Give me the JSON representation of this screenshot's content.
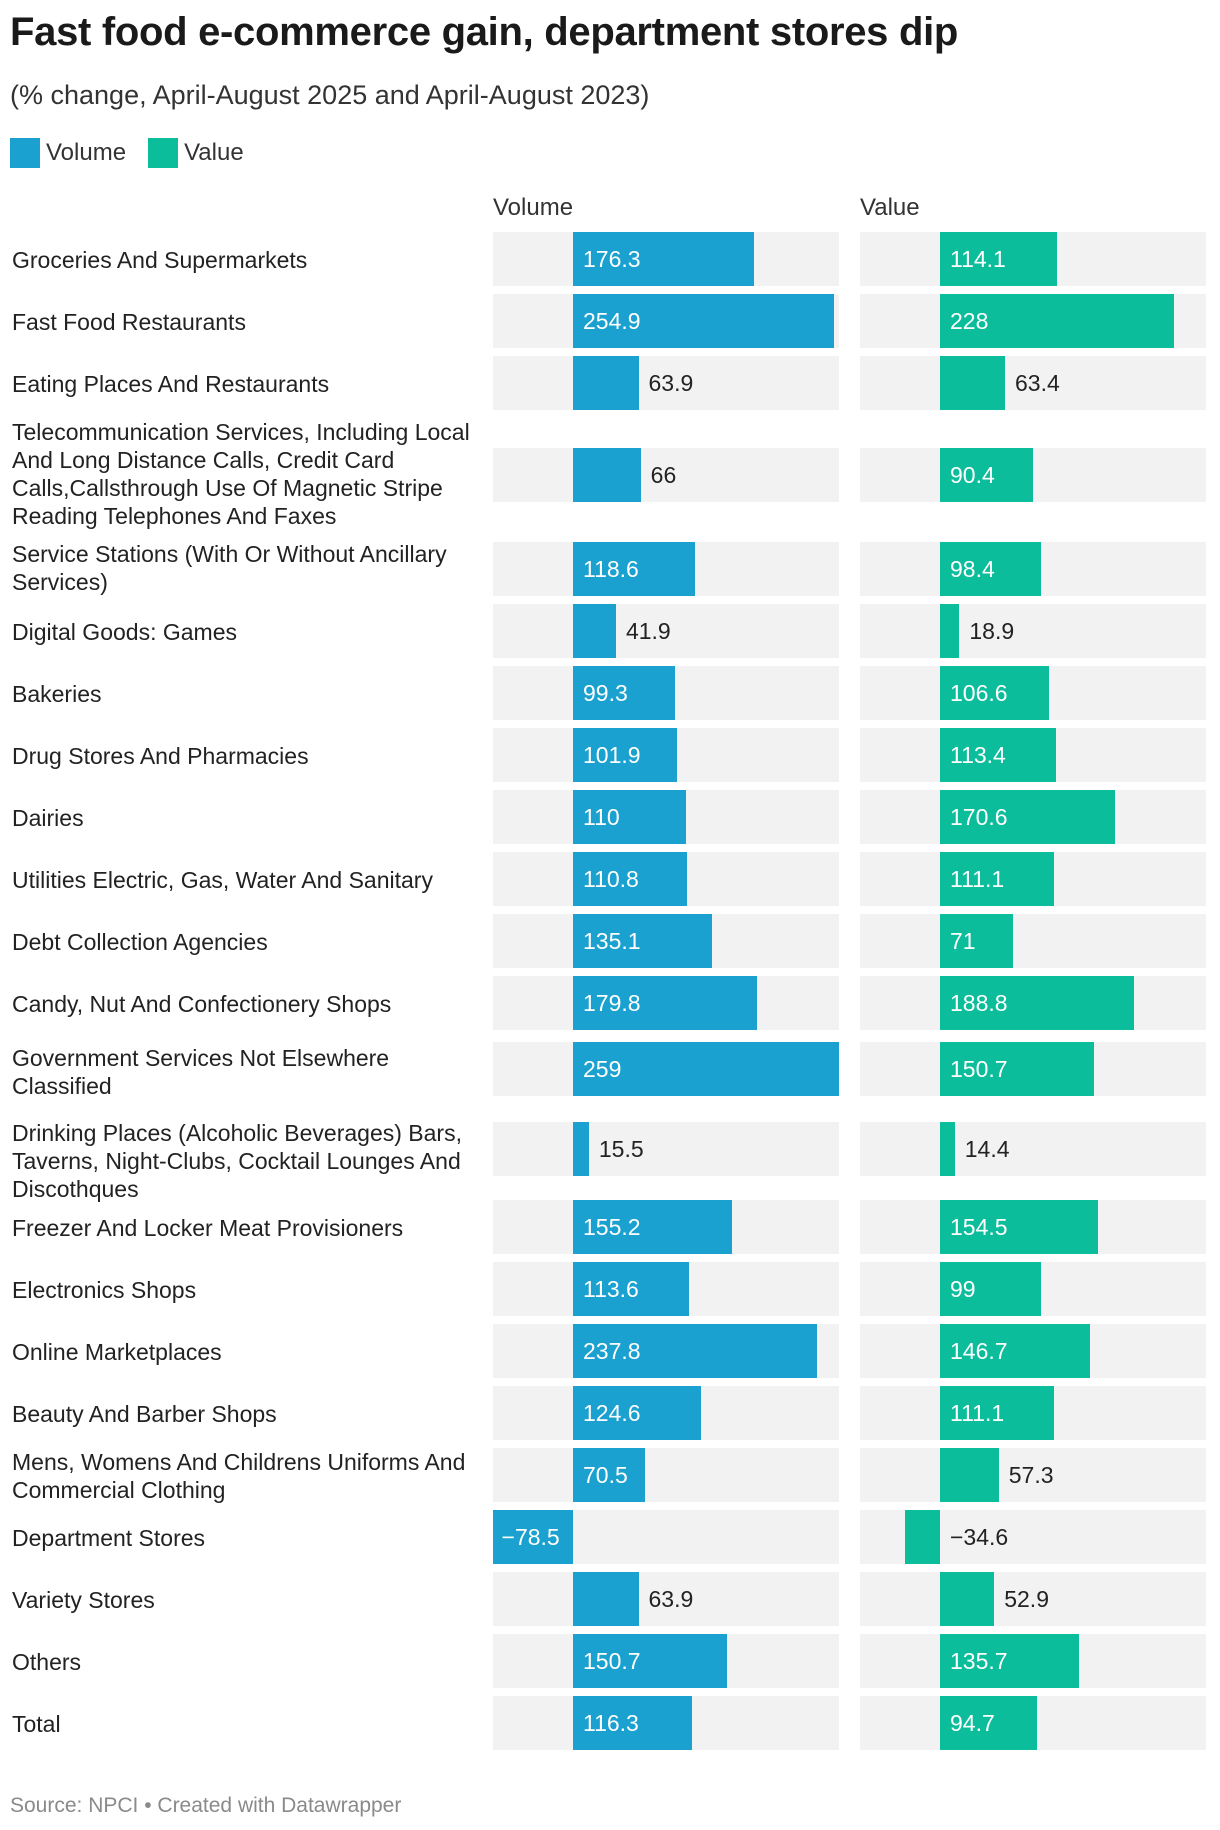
{
  "header": {
    "title": "Fast food e-commerce gain, department stores dip",
    "subtitle": "(% change, April-August 2025 and April-August 2023)"
  },
  "legend": [
    {
      "label": "Volume",
      "color": "#1aa1d0"
    },
    {
      "label": "Value",
      "color": "#0bbd9a"
    }
  ],
  "columns": {
    "volume": "Volume",
    "value": "Value"
  },
  "footer": {
    "source": "Source: NPCI • Created with Datawrapper"
  },
  "chart_data": {
    "type": "bar",
    "orientation": "horizontal",
    "title": "Fast food e-commerce gain, department stores dip",
    "subtitle": "(% change, April-August 2025 and April-August 2023)",
    "categories": [
      "Groceries And Supermarkets",
      "Fast Food Restaurants",
      "Eating Places And Restaurants",
      "Telecommunication Services, Including Local And Long Distance Calls, Credit Card Calls,Callsthrough Use Of Magnetic Stripe Reading Telephones And Faxes",
      "Service Stations (With Or Without Ancillary Services)",
      "Digital Goods: Games",
      "Bakeries",
      "Drug Stores And Pharmacies",
      "Dairies",
      "Utilities Electric, Gas, Water And Sanitary",
      "Debt Collection Agencies",
      "Candy, Nut And Confectionery Shops",
      "Government Services Not Elsewhere Classified",
      "Drinking Places (Alcoholic Beverages) Bars, Taverns, Night-Clubs, Cocktail Lounges And Discothques",
      "Freezer And Locker Meat Provisioners",
      "Electronics Shops",
      "Online Marketplaces",
      "Beauty And Barber Shops",
      "Mens, Womens And Childrens Uniforms And Commercial Clothing",
      "Department Stores",
      "Variety Stores",
      "Others",
      "Total"
    ],
    "series": [
      {
        "name": "Volume",
        "color": "#1aa1d0",
        "values": [
          176.3,
          254.9,
          63.9,
          66,
          118.6,
          41.9,
          99.3,
          101.9,
          110,
          110.8,
          135.1,
          179.8,
          259,
          15.5,
          155.2,
          113.6,
          237.8,
          124.6,
          70.5,
          -78.5,
          63.9,
          150.7,
          116.3
        ],
        "labels": [
          "176.3",
          "254.9",
          "63.9",
          "66",
          "118.6",
          "41.9",
          "99.3",
          "101.9",
          "110",
          "110.8",
          "135.1",
          "179.8",
          "259",
          "15.5",
          "155.2",
          "113.6",
          "237.8",
          "124.6",
          "70.5",
          "−78.5",
          "63.9",
          "150.7",
          "116.3"
        ],
        "range": [
          -78.5,
          259
        ]
      },
      {
        "name": "Value",
        "color": "#0bbd9a",
        "values": [
          114.1,
          228,
          63.4,
          90.4,
          98.4,
          18.9,
          106.6,
          113.4,
          170.6,
          111.1,
          71,
          188.8,
          150.7,
          14.4,
          154.5,
          99,
          146.7,
          111.1,
          57.3,
          -34.6,
          52.9,
          135.7,
          94.7
        ],
        "labels": [
          "114.1",
          "228",
          "63.4",
          "90.4",
          "98.4",
          "18.9",
          "106.6",
          "113.4",
          "170.6",
          "111.1",
          "71",
          "188.8",
          "150.7",
          "14.4",
          "154.5",
          "99",
          "146.7",
          "111.1",
          "57.3",
          "−34.6",
          "52.9",
          "135.7",
          "94.7"
        ],
        "range": [
          -78.5,
          259
        ]
      }
    ],
    "xlabel": "",
    "ylabel": "",
    "legend": "top-left"
  }
}
